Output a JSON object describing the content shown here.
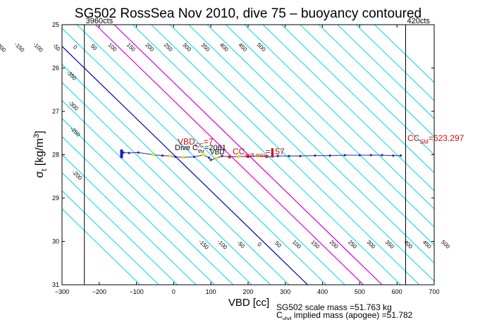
{
  "chart_data": {
    "type": "line",
    "title": "SG502 RossSea Nov 2010, dive 75 – buoyancy contoured",
    "xlabel": "VBD [cc]",
    "ylabel": "σ [kg/m³]",
    "ylabel_parts": {
      "main": "σ",
      "sub": "t",
      "rest": " [kg/m",
      "sup": "3",
      "close": "]"
    },
    "xlim": [
      -300,
      700
    ],
    "ylim": [
      25,
      31
    ],
    "y_reversed": true,
    "xticks": [
      -300,
      -200,
      -100,
      0,
      100,
      200,
      300,
      400,
      500,
      600,
      700
    ],
    "yticks": [
      25,
      26,
      27,
      28,
      29,
      30,
      31
    ],
    "xtick_labels": [
      "−300",
      "−200",
      "−100",
      "0",
      "100",
      "200",
      "300",
      "400",
      "500",
      "600",
      "700"
    ],
    "ytick_labels": [
      "25",
      "26",
      "27",
      "28",
      "29",
      "30",
      "31"
    ],
    "grid": false,
    "buoyancy_contours": {
      "cyan_levels": [
        -450,
        -400,
        -350,
        -300,
        -250,
        -200,
        -150,
        -100,
        -50,
        50,
        100,
        200,
        250,
        300,
        350,
        400,
        450,
        500,
        550,
        600,
        650,
        700,
        750,
        800,
        850,
        900
      ],
      "blue_level": 0,
      "magenta_levels": [
        150,
        200
      ],
      "top_labels": [
        "-200",
        "-150",
        "-100",
        "-50",
        "0",
        "50",
        "100",
        "150",
        "200",
        "250",
        "300",
        "350",
        "400",
        "450",
        "500"
      ],
      "bottom_labels": [
        "-150",
        "-100",
        "-50",
        "0",
        "50",
        "100",
        "150",
        "200",
        "250",
        "300",
        "350",
        "400",
        "450",
        "500"
      ],
      "left_labels": [
        "-350",
        "-300",
        "-250",
        "-200"
      ],
      "colors": {
        "cyan": "#00d8e8",
        "blue": "#0000b8",
        "magenta": "#e000e0"
      }
    },
    "vertical_lines": [
      {
        "x": -240,
        "label": "3960cts"
      },
      {
        "x": 623.297,
        "label": "420cts"
      }
    ],
    "series": [
      {
        "color": "#2a2aa0",
        "x": [
          -140,
          -135,
          -120,
          -95,
          -55,
          -30,
          -10,
          5,
          25,
          55,
          80,
          95,
          100,
          115,
          130,
          150,
          175,
          200,
          225,
          250,
          265,
          280,
          310,
          340,
          380,
          420,
          460,
          500,
          530,
          560,
          590,
          610
        ],
        "y": [
          28.0,
          27.95,
          27.96,
          27.95,
          28.0,
          28.02,
          28.03,
          28.05,
          28.06,
          28.05,
          28.0,
          28.07,
          28.12,
          28.08,
          28.03,
          28.05,
          28.04,
          28.04,
          28.03,
          28.04,
          28.04,
          28.03,
          28.03,
          28.03,
          28.02,
          28.02,
          28.01,
          28.01,
          28.01,
          28.01,
          28.02,
          28.02
        ]
      }
    ],
    "markers": {
      "yellow_x": [
        -140,
        -55,
        -10,
        25,
        80,
        115,
        150,
        175,
        200,
        225
      ],
      "yellow_y": [
        28.0,
        28.0,
        28.03,
        28.06,
        28.0,
        28.08,
        28.05,
        28.04,
        28.04,
        28.03
      ],
      "red_x": [
        150,
        200,
        250
      ],
      "red_y": [
        28.05,
        28.04,
        28.04
      ],
      "blue_bar": {
        "x": -140,
        "y_from": 27.88,
        "y_to": 28.08
      },
      "red_bar": {
        "x": 265,
        "y_from": 27.85,
        "y_to": 28.04
      }
    },
    "annotations": {
      "vbd_cc": {
        "main": "VBD",
        "sub": "CC",
        "rest": "=7"
      },
      "dive_cthr": {
        "main": "Dive C",
        "sub": "thr",
        "rest": "=2061"
      },
      "vbd_fragment": "VBD",
      "cc_soft_min": {
        "main": "CC",
        "sub": "soft min",
        "rest": "=157"
      },
      "cc_sm": {
        "main": "CC",
        "sub": "SM",
        "rest": "=623.297"
      },
      "scale_mass": "SG502 scale mass =51.763 kg",
      "implied_mass": {
        "main": "C",
        "sub": "vbd",
        "rest": " implied mass (apogee) =51.782"
      }
    }
  }
}
